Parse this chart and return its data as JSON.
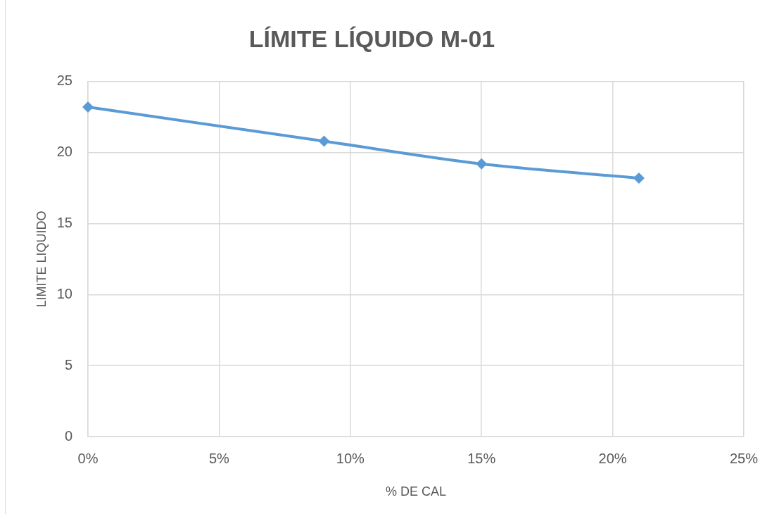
{
  "chart_data": {
    "type": "line",
    "title": "LÍMITE LÍQUIDO M-01",
    "xlabel": "% DE CAL",
    "ylabel": "LIMITE LIQUIDO",
    "x": [
      0,
      9,
      15,
      21
    ],
    "series": [
      {
        "color": "#5b9bd5",
        "values": [
          23.2,
          20.8,
          19.2,
          18.2
        ]
      }
    ],
    "xlim": [
      0,
      25
    ],
    "xticks": [
      {
        "value": 0,
        "label": "0%"
      },
      {
        "value": 5,
        "label": "5%"
      },
      {
        "value": 10,
        "label": "10%"
      },
      {
        "value": 15,
        "label": "15%"
      },
      {
        "value": 20,
        "label": "20%"
      },
      {
        "value": 25,
        "label": "25%"
      }
    ],
    "ylim": [
      0,
      25
    ],
    "yticks": [
      0,
      5,
      10,
      15,
      20,
      25
    ],
    "grid": true,
    "marker": "diamond",
    "line_style": "solid"
  }
}
